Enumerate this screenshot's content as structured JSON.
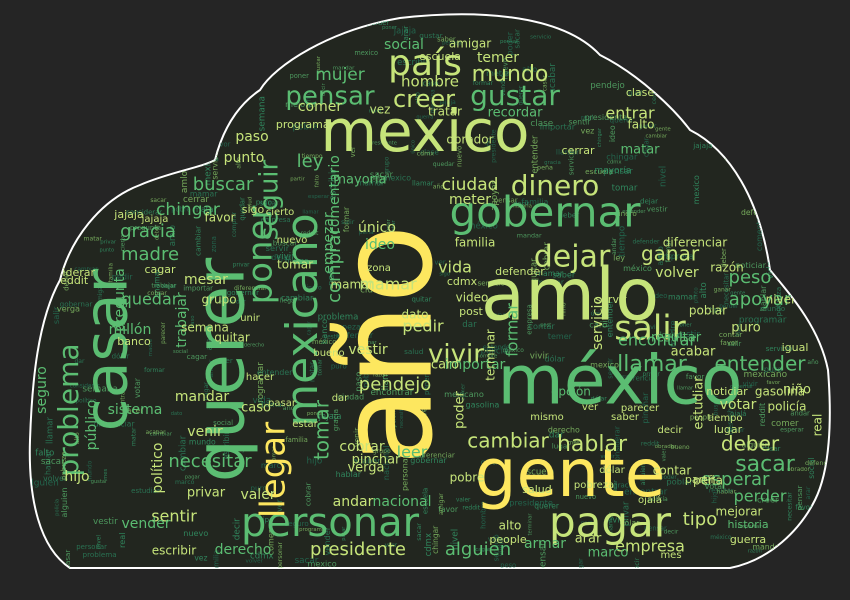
{
  "colors": {
    "background": "#252525",
    "cloud_fill": "#22261f",
    "cloud_outline": "#ffffff",
    "palette": [
      "#fde75f",
      "#c6e47a",
      "#8fd26e",
      "#5bbd72",
      "#34a26f",
      "#2c8a63",
      "#23785b"
    ]
  },
  "words": {
    "w01": "año",
    "w02": "méxico",
    "w03": "gente",
    "w04": "amlo",
    "w05": "mexico",
    "w06": "querer",
    "w07": "casar",
    "w08": "pagar",
    "w09": "personar",
    "w10": "país",
    "w11": "gobernar",
    "w12": "mexicano",
    "w13": "llegar",
    "w14": "dinero",
    "w15": "salir",
    "w16": "dejar",
    "w17": "gustar",
    "w18": "pensar",
    "w19": "creer",
    "w20": "mundo",
    "w21": "poner",
    "w22": "vivir",
    "w23": "hablar",
    "w24": "cambiar",
    "w25": "llamar",
    "w26": "entender",
    "w27": "ganar",
    "w28": "deber",
    "w29": "sacar",
    "w30": "presidente",
    "w31": "alguien",
    "w32": "pendejo",
    "w33": "necesitar",
    "w34": "tipo",
    "w35": "gracia",
    "w36": "buscar",
    "w37": "madre",
    "w38": "chingar",
    "w39": "ciudad",
    "w40": "mujer",
    "w41": "hombre",
    "w42": "tomar",
    "w43": "comprar",
    "w44": "seguir",
    "w45": "mamar",
    "w46": "peso",
    "w47": "apoyar",
    "w48": "volver",
    "w49": "encontrar",
    "w50": "esperar",
    "w51": "perder",
    "w52": "votar",
    "w53": "empresa",
    "w54": "vida",
    "w55": "ideo",
    "w56": "único",
    "w57": "político",
    "w58": "pregunta",
    "w59": "público",
    "w60": "seguro",
    "w61": "comentario",
    "w62": "entrar",
    "w63": "social",
    "w64": "temer",
    "w65": "paso",
    "w66": "punto",
    "w67": "ley",
    "w68": "quedar",
    "w69": "millón",
    "w70": "sentir",
    "w71": "vender",
    "w72": "derecho",
    "w73": "valer",
    "w74": "nacional",
    "w75": "andar",
    "w76": "armar",
    "w77": "empezar",
    "w78": "tratar",
    "w79": "meter",
    "w80": "problema",
    "w81": "mesar",
    "w82": "grupo",
    "w83": "favor",
    "w84": "trabajar",
    "w85": "comer",
    "w86": "mayoría",
    "w87": "vestir",
    "w88": "pedir",
    "w89": "formar",
    "w90": "servicio",
    "w91": "resultar",
    "w92": "acabar",
    "w93": "razón",
    "w94": "nivel",
    "w95": "poblar",
    "w96": "diferenciar",
    "w97": "puro",
    "w98": "niño",
    "w99": "mejorar",
    "w100": "historia",
    "w101": "guerra",
    "w102": "marco",
    "w103": "arar",
    "w104": "leer",
    "w105": "cobrar",
    "w106": "verga",
    "w107": "pinchar",
    "w108": "caso",
    "w109": "venir",
    "w110": "mandar",
    "w111": "sistema",
    "w112": "hijo",
    "w113": "privar",
    "w114": "escribir",
    "w115": "importar",
    "w116": "caro",
    "w117": "familia",
    "w118": "recordar",
    "w119": "amigar",
    "w120": "obrador",
    "w121": "semana",
    "w122": "banco",
    "w123": "mamar",
    "w124": "poder",
    "w125": "estudiar",
    "w126": "policía",
    "w127": "gasolina",
    "w128": "opción",
    "w129": "contar",
    "w130": "peña",
    "w131": "servir",
    "w132": "jajaja",
    "w133": "cdmx",
    "w134": "dato",
    "w135": "post",
    "w136": "video",
    "w137": "matar",
    "w138": "falto",
    "w139": "clase",
    "w140": "cerrar",
    "w141": "vez",
    "w142": "programar",
    "w143": "escuela",
    "w144": "reddit",
    "w145": "considerar",
    "w146": "cagar",
    "w147": "quitar",
    "w148": "defender",
    "w149": "terminar",
    "w150": "pobre",
    "w151": "alto",
    "w152": "people",
    "w153": "salud",
    "w154": "noticiar",
    "w155": "real",
    "w156": "partir",
    "w157": "ojalá",
    "w158": "igual",
    "w159": "lugar",
    "w160": "tiempo",
    "w161": "tomar",
    "w162": "sigo",
    "w163": "cierto",
    "w164": "nuevo",
    "w165": "hacer",
    "w166": "unir",
    "w167": "dar",
    "w168": "pasar",
    "w169": "estar",
    "w170": "bueno",
    "w171": "ver",
    "w172": "mismo",
    "w173": "saber",
    "w174": "decir",
    "w175": "parecer",
    "w176": "mes",
    "w177": "jajaja",
    "w178": "dólar",
    "w179": "pobreza",
    "w180": "zona"
  }
}
